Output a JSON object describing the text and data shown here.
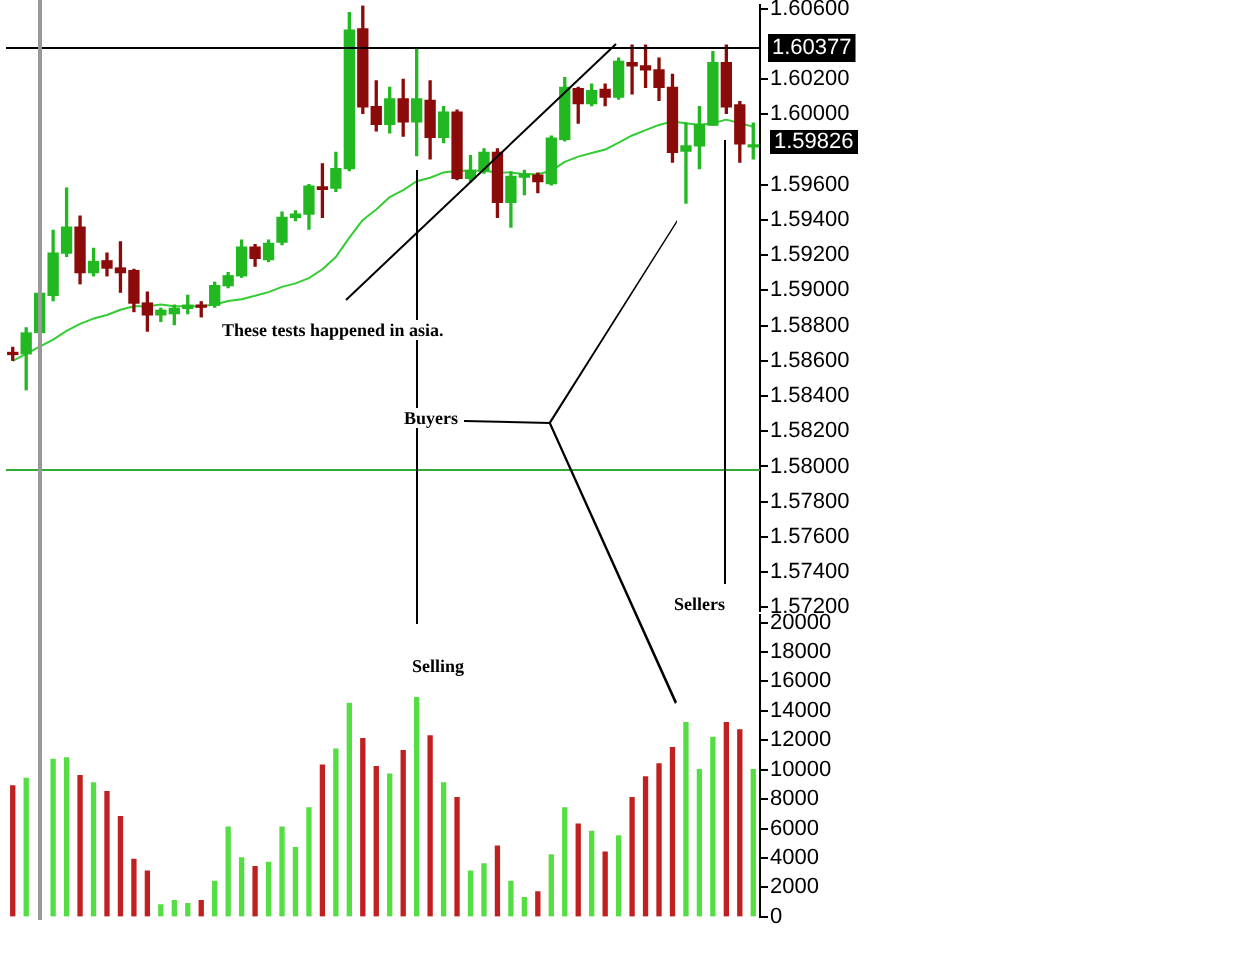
{
  "chart_data": [
    {
      "type": "candlestick",
      "categories": [
        null,
        null,
        null,
        null,
        null,
        null,
        null,
        null,
        null,
        null,
        null,
        null,
        null,
        null,
        null,
        null,
        null,
        null,
        null,
        null,
        null,
        null,
        null,
        null,
        null,
        null,
        null,
        null,
        null,
        null,
        null,
        null,
        null,
        null,
        null,
        null,
        null,
        null,
        null,
        null,
        null,
        null,
        null,
        null,
        null,
        null,
        null,
        null,
        null,
        null,
        null,
        null,
        null,
        null,
        null,
        null
      ],
      "ohlc": [
        [
          1.58647,
          1.58676,
          1.58603,
          1.58636
        ],
        [
          1.5864,
          1.58787,
          1.58436,
          1.58758
        ],
        [
          1.58761,
          1.59009,
          1.5875,
          1.58983
        ],
        [
          1.58972,
          1.59341,
          1.58942,
          1.59212
        ],
        [
          1.59212,
          1.59581,
          1.59193,
          1.59359
        ],
        [
          1.59359,
          1.59422,
          1.59038,
          1.59101
        ],
        [
          1.59101,
          1.59238,
          1.59083,
          1.59164
        ],
        [
          1.59168,
          1.59212,
          1.59083,
          1.59127
        ],
        [
          1.59127,
          1.59275,
          1.5899,
          1.59101
        ],
        [
          1.59112,
          1.59119,
          1.5888,
          1.58928
        ],
        [
          1.58928,
          1.5899,
          1.58769,
          1.58861
        ],
        [
          1.58861,
          1.58898,
          1.58824,
          1.58887
        ],
        [
          1.58868,
          1.58916,
          1.58806,
          1.58898
        ],
        [
          1.58898,
          1.58972,
          1.58868,
          1.58916
        ],
        [
          1.58916,
          1.58935,
          1.5885,
          1.58905
        ],
        [
          1.58916,
          1.59046,
          1.58905,
          1.59027
        ],
        [
          1.59027,
          1.59101,
          1.59016,
          1.59083
        ],
        [
          1.59083,
          1.59286,
          1.59075,
          1.59245
        ],
        [
          1.59245,
          1.5926,
          1.59138,
          1.59182
        ],
        [
          1.59175,
          1.59286,
          1.59164,
          1.59267
        ],
        [
          1.59275,
          1.59444,
          1.5926,
          1.59415
        ],
        [
          1.59415,
          1.59452,
          1.59396,
          1.59433
        ],
        [
          1.59433,
          1.596,
          1.59348,
          1.59592
        ],
        [
          1.59588,
          1.59718,
          1.59415,
          1.59574
        ],
        [
          1.59581,
          1.59784,
          1.59563,
          1.59692
        ],
        [
          1.59692,
          1.60578,
          1.59681,
          1.60478
        ],
        [
          1.60486,
          1.60615,
          1.60006,
          1.60043
        ],
        [
          1.60043,
          1.6019,
          1.59906,
          1.59943
        ],
        [
          1.59943,
          1.60153,
          1.59895,
          1.60087
        ],
        [
          1.60087,
          1.60198,
          1.59876,
          1.59958
        ],
        [
          1.59958,
          1.60375,
          1.59766,
          1.60087
        ],
        [
          1.60079,
          1.6019,
          1.59747,
          1.59869
        ],
        [
          1.59869,
          1.60043,
          1.59839,
          1.60013
        ],
        [
          1.60013,
          1.60024,
          1.59629,
          1.59636
        ],
        [
          1.59636,
          1.59766,
          1.59618,
          1.59681
        ],
        [
          1.59681,
          1.59803,
          1.59666,
          1.59784
        ],
        [
          1.59784,
          1.59803,
          1.59415,
          1.595
        ],
        [
          1.595,
          1.59673,
          1.59359,
          1.59647
        ],
        [
          1.59644,
          1.59681,
          1.59544,
          1.59662
        ],
        [
          1.59655,
          1.59666,
          1.59555,
          1.59618
        ],
        [
          1.59607,
          1.59876,
          1.596,
          1.59865
        ],
        [
          1.59858,
          1.60209,
          1.5985,
          1.60153
        ],
        [
          1.60146,
          1.60153,
          1.5995,
          1.60061
        ],
        [
          1.60061,
          1.60172,
          1.6005,
          1.60135
        ],
        [
          1.60142,
          1.60172,
          1.6005,
          1.60098
        ],
        [
          1.60098,
          1.60319,
          1.60087,
          1.60301
        ],
        [
          1.60294,
          1.60393,
          1.60116,
          1.60275
        ],
        [
          1.60275,
          1.60393,
          1.60153,
          1.60253
        ],
        [
          1.60253,
          1.60319,
          1.60079,
          1.60153
        ],
        [
          1.60153,
          1.60227,
          1.59729,
          1.59784
        ],
        [
          1.59791,
          1.5995,
          1.59496,
          1.59821
        ],
        [
          1.59821,
          1.60043,
          1.59692,
          1.59943
        ],
        [
          1.59939,
          1.60356,
          1.59939,
          1.60294
        ],
        [
          1.60294,
          1.60393,
          1.60006,
          1.60043
        ],
        [
          1.60054,
          1.60072,
          1.59729,
          1.59832
        ],
        [
          1.59815,
          1.5995,
          1.59747,
          1.59826
        ]
      ],
      "colors": [
        "#8b0a0a",
        "#22b822",
        "#22b822",
        "#22b822",
        "#22b822",
        "#8b0a0a",
        "#22b822",
        "#8b0a0a",
        "#8b0a0a",
        "#8b0a0a",
        "#8b0a0a",
        "#22b822",
        "#22b822",
        "#22b822",
        "#8b0a0a",
        "#22b822",
        "#22b822",
        "#22b822",
        "#8b0a0a",
        "#22b822",
        "#22b822",
        "#22b822",
        "#22b822",
        "#8b0a0a",
        "#22b822",
        "#22b822",
        "#8b0a0a",
        "#8b0a0a",
        "#22b822",
        "#8b0a0a",
        "#22b822",
        "#8b0a0a",
        "#22b822",
        "#8b0a0a",
        "#22b822",
        "#22b822",
        "#8b0a0a",
        "#22b822",
        "#22b822",
        "#8b0a0a",
        "#22b822",
        "#22b822",
        "#8b0a0a",
        "#22b822",
        "#8b0a0a",
        "#22b822",
        "#8b0a0a",
        "#8b0a0a",
        "#8b0a0a",
        "#8b0a0a",
        "#22b822",
        "#22b822",
        "#22b822",
        "#8b0a0a",
        "#8b0a0a",
        "#22b822"
      ],
      "series": [
        {
          "type": "line",
          "color": "#33cc33",
          "values": [
            1.586,
            1.5864,
            1.5868,
            1.5872,
            1.5877,
            1.5881,
            1.5884,
            1.5886,
            1.5889,
            1.5891,
            1.5891,
            1.5892,
            1.5891,
            1.5891,
            1.5891,
            1.5892,
            1.5894,
            1.5895,
            1.5897,
            1.5899,
            1.5902,
            1.5904,
            1.5907,
            1.5912,
            1.5919,
            1.593,
            1.594,
            1.5946,
            1.5953,
            1.5957,
            1.5962,
            1.5964,
            1.5967,
            1.5968,
            1.5968,
            1.5968,
            1.5967,
            1.5967,
            1.5966,
            1.5966,
            1.5968,
            1.5973,
            1.5976,
            1.5978,
            1.598,
            1.5984,
            1.5988,
            1.5991,
            1.5994,
            1.5996,
            1.5995,
            1.5994,
            1.5995,
            1.5997,
            1.5995,
            1.5993
          ]
        }
      ],
      "ylim": [
        1.5718,
        1.6062
      ],
      "yticks": [
        {
          "value": 1.606,
          "label": "1.60600"
        },
        {
          "value": 1.602,
          "label": "1.60200"
        },
        {
          "value": 1.6,
          "label": "1.60000"
        },
        {
          "value": 1.596,
          "label": "1.59600"
        },
        {
          "value": 1.594,
          "label": "1.59400"
        },
        {
          "value": 1.592,
          "label": "1.59200"
        },
        {
          "value": 1.59,
          "label": "1.59000"
        },
        {
          "value": 1.588,
          "label": "1.58800"
        },
        {
          "value": 1.586,
          "label": "1.58600"
        },
        {
          "value": 1.584,
          "label": "1.58400"
        },
        {
          "value": 1.582,
          "label": "1.58200"
        },
        {
          "value": 1.58,
          "label": "1.58000"
        },
        {
          "value": 1.578,
          "label": "1.57800"
        },
        {
          "value": 1.576,
          "label": "1.57600"
        },
        {
          "value": 1.574,
          "label": "1.57400"
        },
        {
          "value": 1.572,
          "label": "1.57200"
        }
      ],
      "ref_lines": [
        {
          "axis": "y",
          "value": 1.60377,
          "label": "1.60377",
          "color": "#000000"
        },
        {
          "axis": "y",
          "value": 1.5798,
          "color": "#33aa33"
        }
      ],
      "annotations": [
        "These tests happened in asia.",
        "Buyers",
        "1.59826"
      ]
    },
    {
      "type": "bar",
      "categories": [
        null,
        null,
        null,
        null,
        null,
        null,
        null,
        null,
        null,
        null,
        null,
        null,
        null,
        null,
        null,
        null,
        null,
        null,
        null,
        null,
        null,
        null,
        null,
        null,
        null,
        null,
        null,
        null,
        null,
        null,
        null,
        null,
        null,
        null,
        null,
        null,
        null,
        null,
        null,
        null,
        null,
        null,
        null,
        null,
        null,
        null,
        null,
        null,
        null,
        null,
        null,
        null,
        null,
        null,
        null,
        null
      ],
      "values": [
        8900,
        9400,
        null,
        10700,
        10800,
        9600,
        9100,
        8500,
        6800,
        3900,
        3100,
        800,
        1100,
        900,
        1100,
        2400,
        6100,
        4000,
        3400,
        3700,
        6100,
        4700,
        7400,
        10300,
        11400,
        14500,
        12100,
        10200,
        9700,
        11300,
        14900,
        12300,
        9100,
        8100,
        3100,
        3600,
        4800,
        2400,
        1300,
        1700,
        4200,
        7400,
        6300,
        5800,
        4400,
        5500,
        8100,
        9500,
        10400,
        11500,
        13200,
        10000,
        12200,
        13200,
        12700,
        10000
      ],
      "colors": [
        "#c02020",
        "#55dd44",
        "#55dd44",
        "#55dd44",
        "#55dd44",
        "#c02020",
        "#55dd44",
        "#c02020",
        "#c02020",
        "#c02020",
        "#c02020",
        "#55dd44",
        "#55dd44",
        "#55dd44",
        "#c02020",
        "#55dd44",
        "#55dd44",
        "#55dd44",
        "#c02020",
        "#55dd44",
        "#55dd44",
        "#55dd44",
        "#55dd44",
        "#c02020",
        "#55dd44",
        "#55dd44",
        "#c02020",
        "#c02020",
        "#55dd44",
        "#c02020",
        "#55dd44",
        "#c02020",
        "#55dd44",
        "#c02020",
        "#55dd44",
        "#55dd44",
        "#c02020",
        "#55dd44",
        "#55dd44",
        "#c02020",
        "#55dd44",
        "#55dd44",
        "#c02020",
        "#55dd44",
        "#c02020",
        "#55dd44",
        "#c02020",
        "#c02020",
        "#c02020",
        "#c02020",
        "#55dd44",
        "#55dd44",
        "#55dd44",
        "#c02020",
        "#c02020",
        "#55dd44"
      ],
      "ylim": [
        0,
        20500
      ],
      "yticks": [
        0,
        2000,
        4000,
        6000,
        8000,
        10000,
        12000,
        14000,
        16000,
        18000,
        20000
      ],
      "annotations": [
        "Selling",
        "Sellers"
      ]
    }
  ]
}
